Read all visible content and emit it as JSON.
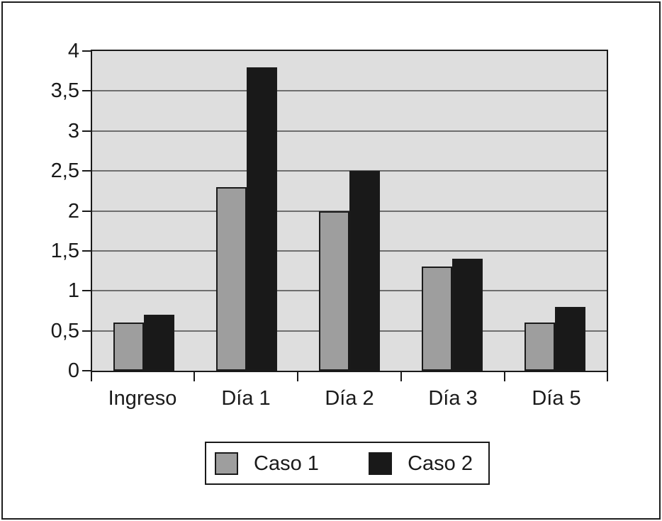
{
  "chart_data": {
    "type": "bar",
    "categories": [
      "Ingreso",
      "Día 1",
      "Día 2",
      "Día 3",
      "Día 5"
    ],
    "series": [
      {
        "name": "Caso 1",
        "color": "#9e9e9e",
        "values": [
          0.6,
          2.3,
          2.0,
          1.3,
          0.6
        ]
      },
      {
        "name": "Caso 2",
        "color": "#191919",
        "values": [
          0.7,
          3.8,
          2.5,
          1.4,
          0.8
        ]
      }
    ],
    "title": "",
    "xlabel": "",
    "ylabel": "",
    "ylim": [
      0,
      4
    ],
    "y_tick_values": [
      4,
      3.5,
      3,
      2.5,
      2,
      1.5,
      1,
      0.5,
      0
    ],
    "y_tick_labels": [
      "4",
      "3,5",
      "3",
      "2,5",
      "2",
      "1,5",
      "1",
      "0,5",
      "0"
    ],
    "decimal_separator": ",",
    "grid": true,
    "gridline_step": 0.5,
    "legend_position": "bottom",
    "plot_background": "#dedede",
    "gridline_color": "#6e6e6e",
    "axis_color": "#1a1a1a"
  }
}
